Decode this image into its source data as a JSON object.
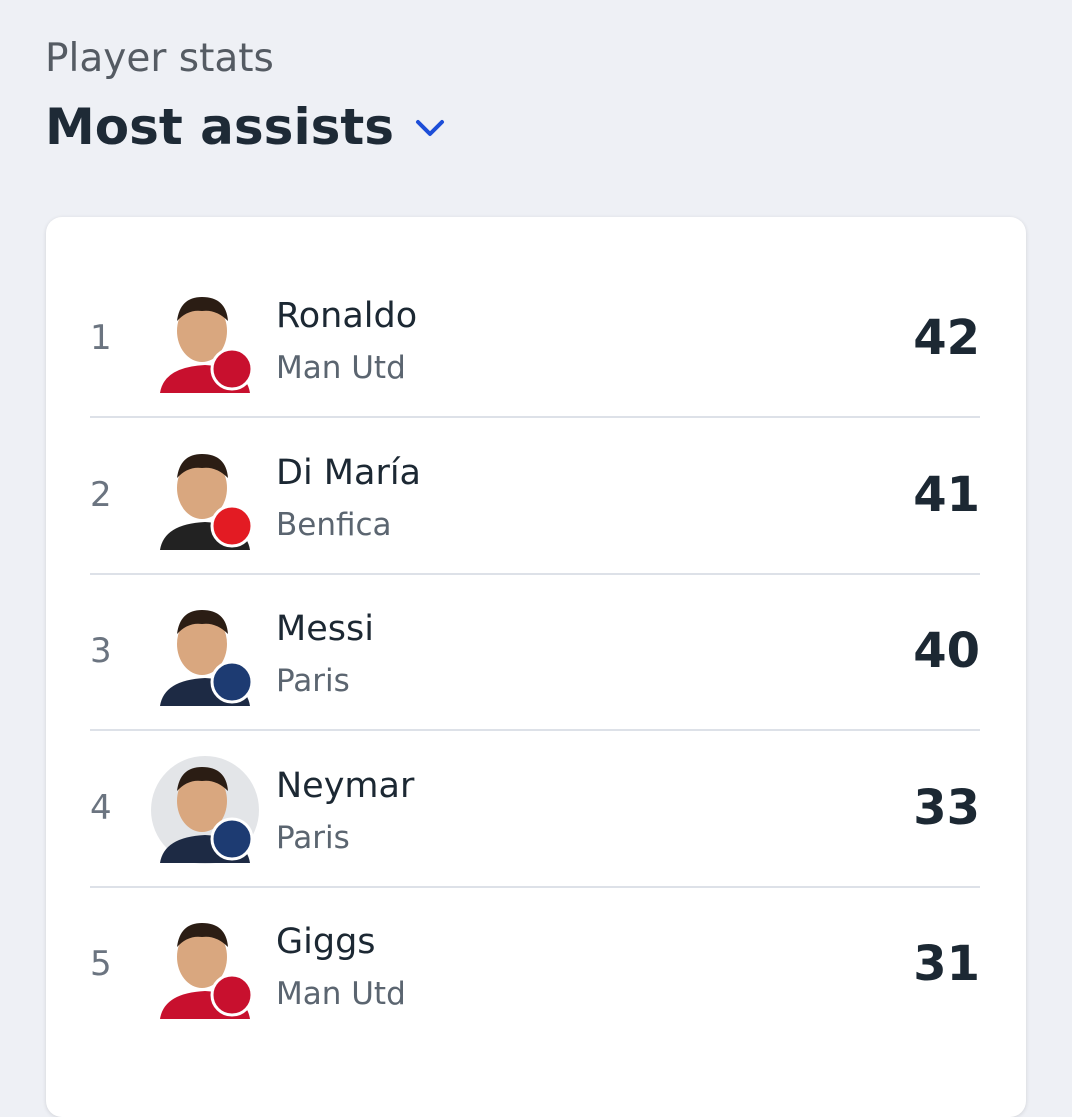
{
  "header": {
    "subtitle": "Player stats",
    "title": "Most assists"
  },
  "table": {
    "rows": [
      {
        "rank": 1,
        "name": "Ronaldo",
        "club": "Man Utd",
        "assists": 42
      },
      {
        "rank": 2,
        "name": "Di María",
        "club": "Benfica",
        "assists": 41
      },
      {
        "rank": 3,
        "name": "Messi",
        "club": "Paris",
        "assists": 40
      },
      {
        "rank": 4,
        "name": "Neymar",
        "club": "Paris",
        "assists": 33
      },
      {
        "rank": 5,
        "name": "Giggs",
        "club": "Man Utd",
        "assists": 31
      }
    ]
  }
}
